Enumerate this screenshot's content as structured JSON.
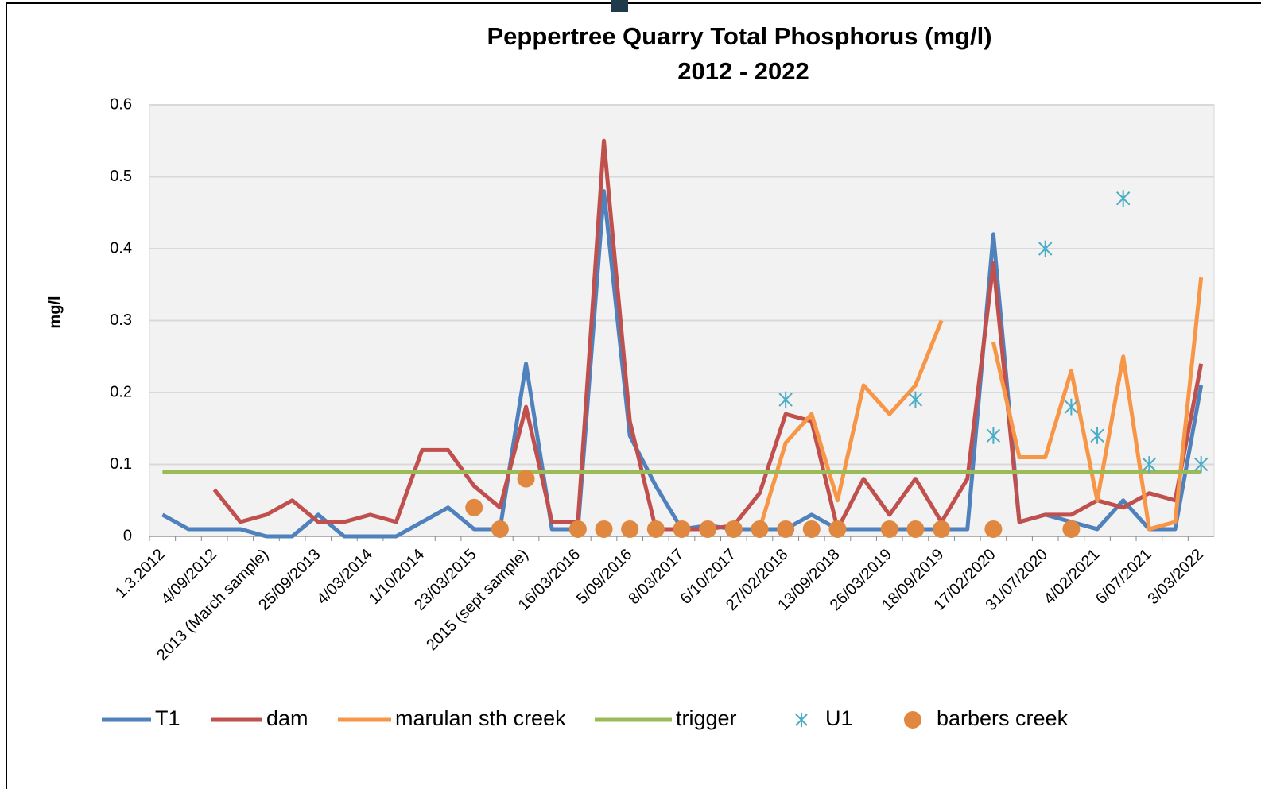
{
  "chart_data": {
    "type": "line",
    "title": "Peppertree Quarry Total Phosphorus (mg/l)",
    "subtitle": "2012 - 2022",
    "y_label": "mg/l",
    "categories": [
      "1.3.2012",
      null,
      "4/09/2012",
      null,
      "2013 (March sample)",
      null,
      "25/09/2013",
      null,
      "4/03/2014",
      null,
      "1/10/2014",
      null,
      "23/03/2015",
      null,
      "2015 (sept sample)",
      null,
      "16/03/2016",
      null,
      "5/09/2016",
      null,
      "8/03/2017",
      null,
      "6/10/2017",
      null,
      "27/02/2018",
      null,
      "13/09/2018",
      null,
      "26/03/2019",
      null,
      "18/09/2019",
      null,
      "17/02/2020",
      null,
      "31/07/2020",
      null,
      "4/02/2021",
      null,
      "6/07/2021",
      null,
      "3/03/2022"
    ],
    "series": [
      {
        "name": "T1",
        "color": "#4f81bd",
        "marker": "line",
        "values": [
          0.03,
          0.01,
          0.01,
          0.01,
          0.0,
          0.0,
          0.03,
          0.0,
          0.0,
          0.0,
          0.02,
          0.04,
          0.01,
          0.01,
          0.24,
          0.01,
          0.01,
          0.48,
          0.14,
          0.07,
          0.01,
          0.015,
          0.01,
          0.01,
          0.01,
          0.03,
          0.01,
          0.01,
          0.01,
          0.01,
          0.01,
          0.01,
          0.42,
          0.02,
          0.03,
          0.02,
          0.01,
          0.05,
          0.01,
          0.01,
          0.21
        ]
      },
      {
        "name": "dam",
        "color": "#c0504d",
        "marker": "line",
        "values": [
          null,
          null,
          0.065,
          0.02,
          0.03,
          0.05,
          0.02,
          0.02,
          0.03,
          0.02,
          0.12,
          0.12,
          0.07,
          0.04,
          0.18,
          0.02,
          0.02,
          0.55,
          0.16,
          0.01,
          0.01,
          0.01,
          0.015,
          0.06,
          0.17,
          0.16,
          0.01,
          0.08,
          0.03,
          0.08,
          0.02,
          0.08,
          0.38,
          0.02,
          0.03,
          0.03,
          0.05,
          0.04,
          0.06,
          0.05,
          0.24
        ]
      },
      {
        "name": "marulan sth creek",
        "color": "#f79646",
        "marker": "line",
        "values": [
          null,
          null,
          null,
          null,
          null,
          null,
          null,
          null,
          null,
          null,
          null,
          null,
          null,
          null,
          null,
          null,
          null,
          null,
          null,
          null,
          null,
          null,
          null,
          0.01,
          0.13,
          0.17,
          0.05,
          0.21,
          0.17,
          0.21,
          0.3,
          null,
          0.27,
          0.11,
          0.11,
          0.23,
          0.05,
          0.25,
          0.01,
          0.02,
          0.36
        ]
      },
      {
        "name": "trigger",
        "color": "#9bbb59",
        "marker": "line",
        "values": [
          0.09,
          0.09,
          0.09,
          0.09,
          0.09,
          0.09,
          0.09,
          0.09,
          0.09,
          0.09,
          0.09,
          0.09,
          0.09,
          0.09,
          0.09,
          0.09,
          0.09,
          0.09,
          0.09,
          0.09,
          0.09,
          0.09,
          0.09,
          0.09,
          0.09,
          0.09,
          0.09,
          0.09,
          0.09,
          0.09,
          0.09,
          0.09,
          0.09,
          0.09,
          0.09,
          0.09,
          0.09,
          0.09,
          0.09,
          0.09,
          0.09
        ]
      },
      {
        "name": "U1",
        "color": "#4bacc6",
        "marker": "star",
        "values": [
          null,
          null,
          null,
          null,
          null,
          null,
          null,
          null,
          null,
          null,
          null,
          null,
          null,
          null,
          null,
          null,
          null,
          null,
          null,
          null,
          null,
          null,
          null,
          null,
          0.19,
          null,
          null,
          null,
          null,
          0.19,
          null,
          null,
          0.14,
          null,
          0.4,
          0.18,
          0.14,
          0.47,
          0.1,
          null,
          0.1
        ]
      },
      {
        "name": "barbers creek",
        "color": "#e0883f",
        "marker": "dot",
        "values": [
          null,
          null,
          null,
          null,
          null,
          null,
          null,
          null,
          null,
          null,
          null,
          null,
          0.04,
          0.01,
          0.08,
          null,
          0.01,
          0.01,
          0.01,
          0.01,
          0.01,
          0.01,
          0.01,
          0.01,
          0.01,
          0.01,
          0.01,
          null,
          0.01,
          0.01,
          0.01,
          null,
          0.01,
          null,
          null,
          0.01,
          null,
          null,
          null,
          null,
          null
        ]
      }
    ],
    "ylim": [
      0,
      0.6
    ],
    "yticks": [
      0,
      0.1,
      0.2,
      0.3,
      0.4,
      0.5,
      0.6
    ],
    "grid": true,
    "legend": "bottom"
  }
}
